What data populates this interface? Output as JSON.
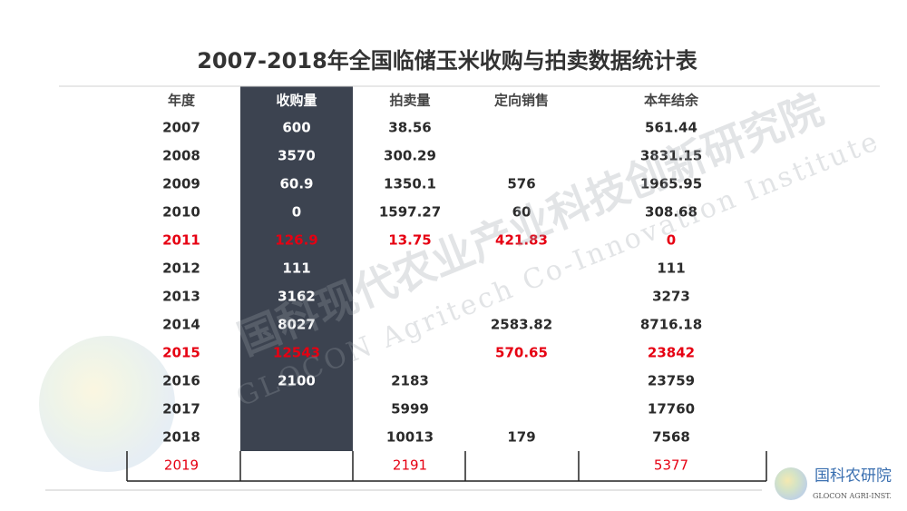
{
  "header": {
    "title": "2007-2018年全国临储玉米收购与拍卖数据统计表"
  },
  "table": {
    "columns": [
      "年度",
      "收购量",
      "拍卖量",
      "定向销售",
      "本年结余"
    ],
    "rows": [
      {
        "cells": [
          "2007",
          "600",
          "38.56",
          null,
          "561.44"
        ],
        "color": "#2b2b2b"
      },
      {
        "cells": [
          "2008",
          "3570",
          "300.29",
          null,
          "3831.15"
        ],
        "color": "#2b2b2b"
      },
      {
        "cells": [
          "2009",
          "60.9",
          "1350.1",
          "576",
          "1965.95"
        ],
        "color": "#2b2b2b"
      },
      {
        "cells": [
          "2010",
          "0",
          "1597.27",
          "60",
          "308.68"
        ],
        "color": "#2b2b2b"
      },
      {
        "cells": [
          "2011",
          "126.9",
          "13.75",
          "421.83",
          "0"
        ],
        "color": "#e60012"
      },
      {
        "cells": [
          "2012",
          "111",
          null,
          null,
          "111"
        ],
        "color": "#2b2b2b"
      },
      {
        "cells": [
          "2013",
          "3162",
          null,
          null,
          "3273"
        ],
        "color": "#2b2b2b"
      },
      {
        "cells": [
          "2014",
          "8027",
          null,
          "2583.82",
          "8716.18"
        ],
        "color": "#2b2b2b"
      },
      {
        "cells": [
          "2015",
          "12543",
          null,
          "570.65",
          "23842"
        ],
        "color": "#e60012"
      },
      {
        "cells": [
          "2016",
          "2100",
          "2183",
          null,
          "23759"
        ],
        "color": "#2b2b2b"
      },
      {
        "cells": [
          "2017",
          null,
          "5999",
          null,
          "17760"
        ],
        "color": "#2b2b2b"
      },
      {
        "cells": [
          "2018",
          null,
          "10013",
          "179",
          "7568"
        ],
        "color": "#2b2b2b"
      },
      {
        "cells": [
          "2019",
          null,
          "2191",
          null,
          "5377"
        ],
        "color": "#e60012"
      }
    ]
  },
  "watermark": {
    "cn": "国科现代农业产业科技创新研究院",
    "en": "GLOCON Agritech Co-Innovation Institute"
  },
  "logo": {
    "cn": "国科农研院",
    "en": "GLOCON AGRI-INST."
  }
}
